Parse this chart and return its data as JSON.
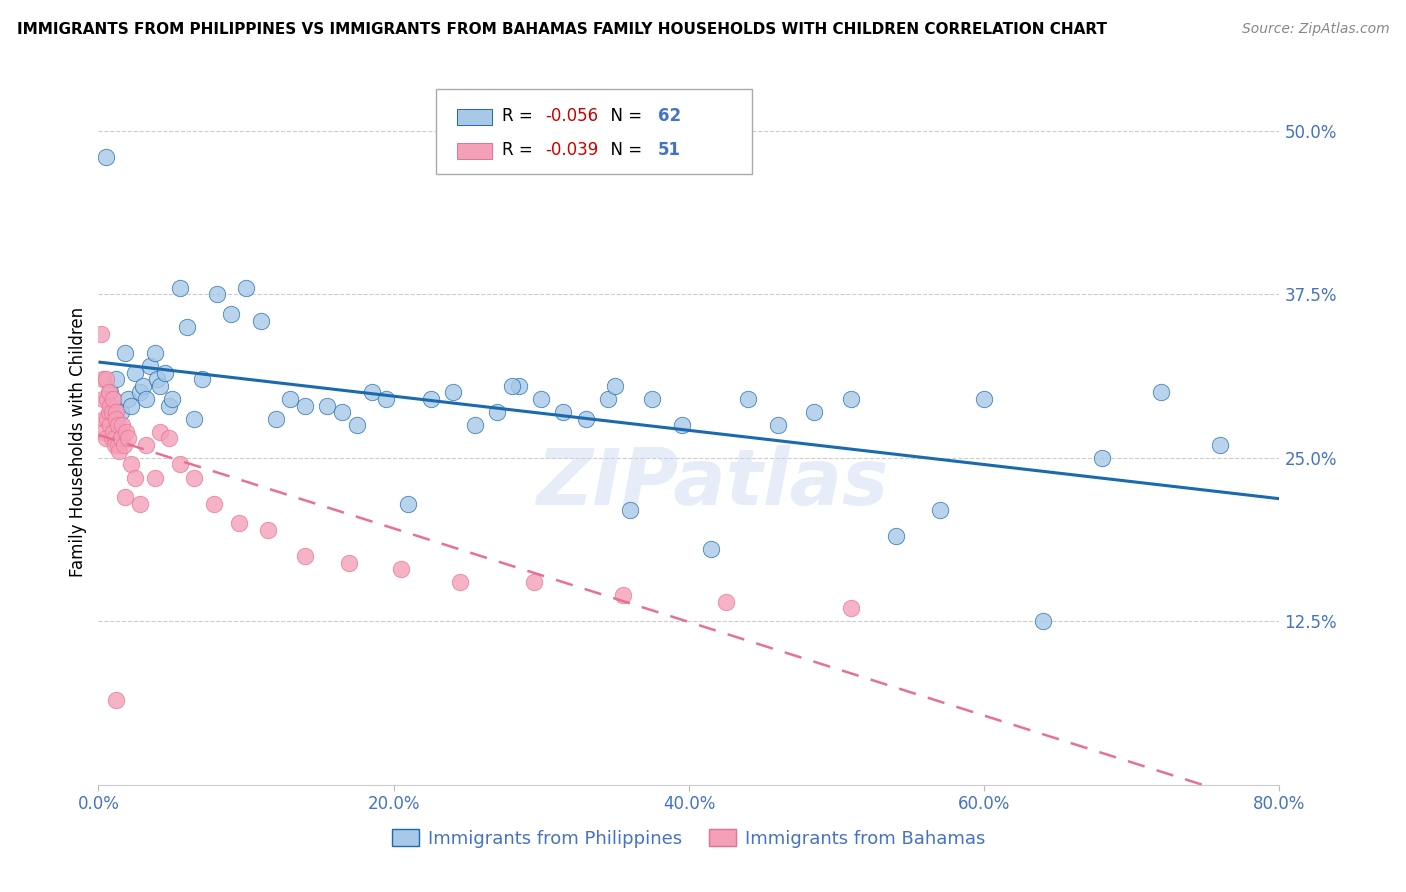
{
  "title": "IMMIGRANTS FROM PHILIPPINES VS IMMIGRANTS FROM BAHAMAS FAMILY HOUSEHOLDS WITH CHILDREN CORRELATION CHART",
  "source": "Source: ZipAtlas.com",
  "ylabel": "Family Households with Children",
  "xlabel_ticks": [
    "0.0%",
    "20.0%",
    "40.0%",
    "60.0%",
    "80.0%"
  ],
  "xlabel_vals": [
    0.0,
    0.2,
    0.4,
    0.6,
    0.8
  ],
  "ylabel_ticks": [
    "12.5%",
    "25.0%",
    "37.5%",
    "50.0%"
  ],
  "ylabel_vals": [
    0.125,
    0.25,
    0.375,
    0.5
  ],
  "xlim": [
    0.0,
    0.8
  ],
  "ylim": [
    0.0,
    0.525
  ],
  "legend1_label": "Immigrants from Philippines",
  "legend2_label": "Immigrants from Bahamas",
  "R_philippines": -0.056,
  "N_philippines": 62,
  "R_bahamas": -0.039,
  "N_bahamas": 51,
  "blue_color": "#a8c8e8",
  "pink_color": "#f4a0b8",
  "blue_line_color": "#1a6aad",
  "pink_line_color": "#e87090",
  "axis_label_color": "#4472C4",
  "watermark": "ZIPatlas",
  "philippines_x": [
    0.005,
    0.008,
    0.01,
    0.012,
    0.015,
    0.018,
    0.02,
    0.022,
    0.025,
    0.028,
    0.03,
    0.032,
    0.035,
    0.038,
    0.04,
    0.042,
    0.045,
    0.048,
    0.05,
    0.055,
    0.06,
    0.065,
    0.07,
    0.08,
    0.09,
    0.1,
    0.11,
    0.12,
    0.13,
    0.14,
    0.155,
    0.165,
    0.175,
    0.185,
    0.195,
    0.21,
    0.225,
    0.24,
    0.255,
    0.27,
    0.285,
    0.3,
    0.315,
    0.33,
    0.345,
    0.36,
    0.375,
    0.395,
    0.415,
    0.44,
    0.46,
    0.485,
    0.51,
    0.54,
    0.57,
    0.6,
    0.64,
    0.68,
    0.72,
    0.76,
    0.35,
    0.28
  ],
  "philippines_y": [
    0.48,
    0.3,
    0.295,
    0.31,
    0.285,
    0.33,
    0.295,
    0.29,
    0.315,
    0.3,
    0.305,
    0.295,
    0.32,
    0.33,
    0.31,
    0.305,
    0.315,
    0.29,
    0.295,
    0.38,
    0.35,
    0.28,
    0.31,
    0.375,
    0.36,
    0.38,
    0.355,
    0.28,
    0.295,
    0.29,
    0.29,
    0.285,
    0.275,
    0.3,
    0.295,
    0.215,
    0.295,
    0.3,
    0.275,
    0.285,
    0.305,
    0.295,
    0.285,
    0.28,
    0.295,
    0.21,
    0.295,
    0.275,
    0.18,
    0.295,
    0.275,
    0.285,
    0.295,
    0.19,
    0.21,
    0.295,
    0.125,
    0.25,
    0.3,
    0.26,
    0.305,
    0.305
  ],
  "bahamas_x": [
    0.002,
    0.003,
    0.003,
    0.004,
    0.004,
    0.005,
    0.005,
    0.006,
    0.006,
    0.007,
    0.007,
    0.008,
    0.008,
    0.009,
    0.009,
    0.01,
    0.01,
    0.011,
    0.011,
    0.012,
    0.012,
    0.013,
    0.013,
    0.014,
    0.015,
    0.016,
    0.017,
    0.018,
    0.019,
    0.02,
    0.022,
    0.025,
    0.028,
    0.032,
    0.038,
    0.042,
    0.048,
    0.055,
    0.065,
    0.078,
    0.095,
    0.115,
    0.14,
    0.17,
    0.205,
    0.245,
    0.295,
    0.355,
    0.425,
    0.51,
    0.012
  ],
  "bahamas_y": [
    0.345,
    0.31,
    0.295,
    0.28,
    0.27,
    0.265,
    0.31,
    0.295,
    0.28,
    0.3,
    0.285,
    0.29,
    0.275,
    0.265,
    0.285,
    0.295,
    0.27,
    0.265,
    0.26,
    0.285,
    0.28,
    0.26,
    0.275,
    0.255,
    0.265,
    0.275,
    0.26,
    0.22,
    0.27,
    0.265,
    0.245,
    0.235,
    0.215,
    0.26,
    0.235,
    0.27,
    0.265,
    0.245,
    0.235,
    0.215,
    0.2,
    0.195,
    0.175,
    0.17,
    0.165,
    0.155,
    0.155,
    0.145,
    0.14,
    0.135,
    0.065
  ]
}
